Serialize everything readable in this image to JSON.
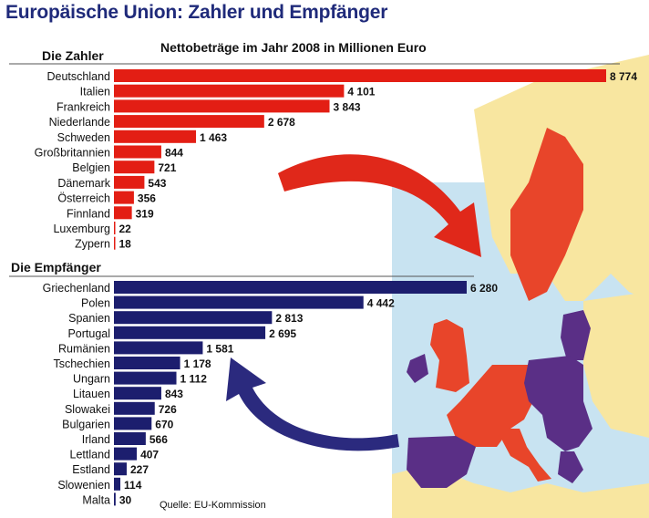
{
  "title": "Europäische Union: Zahler und Empfänger",
  "subtitle": "Nettobeträge im Jahr 2008 in Millionen Euro",
  "source": "Quelle: EU-Kommission",
  "colors": {
    "zahler": "#e31e14",
    "empfaenger": "#1c1e6e",
    "map_payer": "#e8452a",
    "map_receiver": "#5a2f86",
    "map_other": "#f8e6a0",
    "sea": "#c8e3f1"
  },
  "chart_data": [
    {
      "type": "bar",
      "orientation": "horizontal",
      "group_title": "Die Zahler",
      "color": "#e31e14",
      "categories": [
        "Deutschland",
        "Italien",
        "Frankreich",
        "Niederlande",
        "Schweden",
        "Großbritannien",
        "Belgien",
        "Dänemark",
        "Österreich",
        "Finnland",
        "Luxemburg",
        "Zypern"
      ],
      "values": [
        8774,
        4101,
        3843,
        2678,
        1463,
        844,
        721,
        543,
        356,
        319,
        22,
        18
      ],
      "value_labels": [
        "8 774",
        "4 101",
        "3 843",
        "2 678",
        "1 463",
        "844",
        "721",
        "543",
        "356",
        "319",
        "22",
        "18"
      ]
    },
    {
      "type": "bar",
      "orientation": "horizontal",
      "group_title": "Die Empfänger",
      "color": "#1c1e6e",
      "categories": [
        "Griechenland",
        "Polen",
        "Spanien",
        "Portugal",
        "Rumänien",
        "Tschechien",
        "Ungarn",
        "Litauen",
        "Slowakei",
        "Bulgarien",
        "Irland",
        "Lettland",
        "Estland",
        "Slowenien",
        "Malta"
      ],
      "values": [
        6280,
        4442,
        2813,
        2695,
        1581,
        1178,
        1112,
        843,
        726,
        670,
        566,
        407,
        227,
        114,
        30
      ],
      "value_labels": [
        "6 280",
        "4 442",
        "2 813",
        "2 695",
        "1 581",
        "1 178",
        "1 112",
        "843",
        "726",
        "670",
        "566",
        "407",
        "227",
        "114",
        "30"
      ]
    }
  ]
}
